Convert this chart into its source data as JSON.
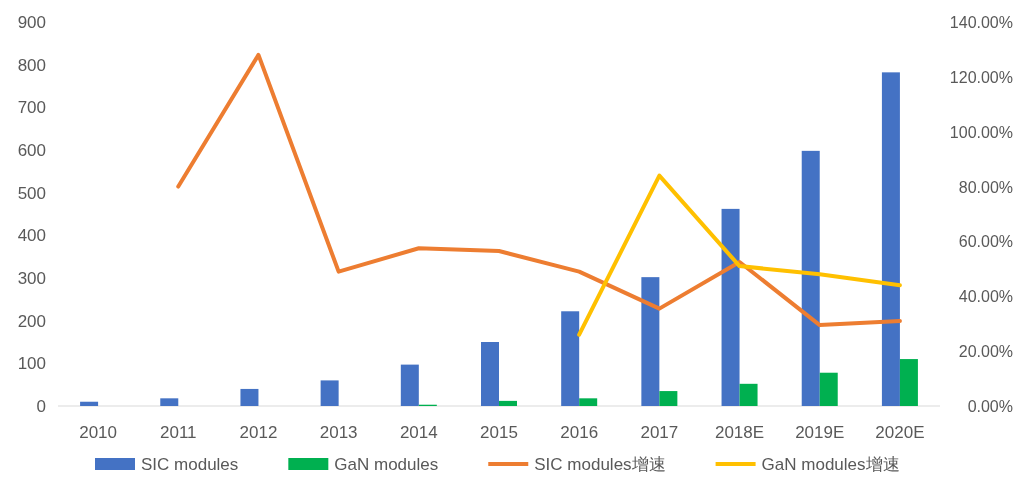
{
  "chart_data": {
    "type": "bar",
    "categories": [
      "2010",
      "2011",
      "2012",
      "2013",
      "2014",
      "2015",
      "2016",
      "2017",
      "2018E",
      "2019E",
      "2020E"
    ],
    "series": [
      {
        "name": "SIC modules",
        "color": "#4472c4",
        "values": [
          10,
          18,
          40,
          60,
          97,
          150,
          222,
          302,
          462,
          598,
          782
        ]
      },
      {
        "name": "GaN modules",
        "color": "#00b050",
        "values": [
          0,
          0,
          0,
          0,
          3,
          12,
          18,
          35,
          52,
          78,
          110
        ]
      },
      {
        "name": "SIC modules增速",
        "type": "line",
        "axis": "y2",
        "color": "#ed7d31",
        "values": [
          null,
          80,
          128,
          49,
          57.5,
          56.5,
          49,
          35.5,
          52.5,
          29.5,
          31
        ]
      },
      {
        "name": "GaN modules增速",
        "type": "line",
        "axis": "y2",
        "color": "#ffc000",
        "values": [
          null,
          null,
          null,
          null,
          null,
          null,
          26,
          84,
          51,
          48,
          44
        ]
      }
    ],
    "ylim": [
      0,
      900
    ],
    "yticks": [
      0,
      100,
      200,
      300,
      400,
      500,
      600,
      700,
      800,
      900
    ],
    "y2lim": [
      0,
      140
    ],
    "y2ticks": [
      {
        "value": 0,
        "label": "0.00%"
      },
      {
        "value": 20,
        "label": "20.00%"
      },
      {
        "value": 40,
        "label": "40.00%"
      },
      {
        "value": 60,
        "label": "60.00%"
      },
      {
        "value": 80,
        "label": "80.00%"
      },
      {
        "value": 100,
        "label": "100.00%"
      },
      {
        "value": 120,
        "label": "120.00%"
      },
      {
        "value": 140,
        "label": "140.00%"
      }
    ],
    "legend": "bottom"
  }
}
